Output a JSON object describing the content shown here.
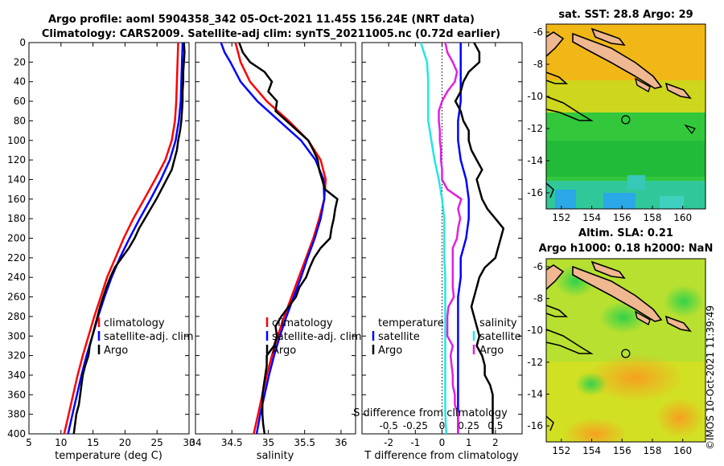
{
  "titles": {
    "line1": "Argo profile: aoml 5904358_342 05-Oct-2021 11.45S 156.24E (NRT data)",
    "line2": "Climatology: CARS2009. Satellite-adj clim: synTS_20211005.nc (0.72d earlier)",
    "sst": "sat. SST: 28.8 Argo: 29",
    "sla1": "Altim. SLA: 0.21",
    "sla2": "Argo h1000: 0.18 h2000: NaN"
  },
  "stamp": "©IMOS 10-Oct-2021 11:39:49",
  "colors": {
    "climatology": "#ff0000",
    "satellite": "#0000ff",
    "argo": "#000000",
    "t_diff": "#22e6e6",
    "s_diff": "#e020e0"
  },
  "chart_data": [
    {
      "type": "line",
      "name": "temperature",
      "xlabel": "temperature (deg C)",
      "ylabel": "",
      "xlim": [
        5,
        30
      ],
      "ylim": [
        400,
        0
      ],
      "xticks": [
        "5",
        "10",
        "15",
        "20",
        "25",
        "30"
      ],
      "yticks": [
        "0",
        "20",
        "40",
        "60",
        "80",
        "100",
        "120",
        "140",
        "160",
        "180",
        "200",
        "220",
        "240",
        "260",
        "280",
        "300",
        "320",
        "340",
        "360",
        "380",
        "400"
      ],
      "legend": [
        "climatology",
        "satellite-adj. clim",
        "Argo"
      ],
      "series": [
        {
          "name": "climatology",
          "depth": [
            0,
            20,
            40,
            60,
            80,
            100,
            120,
            140,
            160,
            180,
            200,
            220,
            240,
            260,
            280,
            300,
            320,
            340,
            360,
            380,
            400
          ],
          "values": [
            28.3,
            28.2,
            28.1,
            28.0,
            27.8,
            27.3,
            26.3,
            24.7,
            23.0,
            21.3,
            19.8,
            18.5,
            17.2,
            16.2,
            15.2,
            14.3,
            13.4,
            12.6,
            11.9,
            11.2,
            10.5
          ]
        },
        {
          "name": "satellite-adj. clim",
          "depth": [
            0,
            20,
            40,
            60,
            80,
            100,
            120,
            140,
            160,
            180,
            200,
            220,
            240,
            260,
            280,
            300,
            320,
            340,
            360,
            380,
            400
          ],
          "values": [
            29.0,
            28.9,
            28.8,
            28.7,
            28.4,
            27.9,
            27.0,
            25.6,
            24.0,
            22.3,
            20.7,
            19.2,
            17.9,
            16.8,
            15.8,
            14.9,
            14.0,
            13.2,
            12.5,
            11.8,
            11.1
          ]
        },
        {
          "name": "Argo",
          "depth": [
            0,
            10,
            20,
            30,
            40,
            50,
            60,
            70,
            80,
            90,
            100,
            110,
            120,
            130,
            140,
            150,
            160,
            170,
            180,
            190,
            200,
            210,
            220,
            230,
            240,
            250,
            260,
            270,
            280,
            290,
            300,
            310,
            320,
            330,
            340,
            350,
            360,
            370,
            380,
            390,
            400
          ],
          "values": [
            29.2,
            29.3,
            29.2,
            29.1,
            29.1,
            29.0,
            29.0,
            28.9,
            28.8,
            28.6,
            28.3,
            28.1,
            27.7,
            27.3,
            26.5,
            25.7,
            24.9,
            24.0,
            23.1,
            22.2,
            21.5,
            20.6,
            19.5,
            18.4,
            17.7,
            17.1,
            16.6,
            16.1,
            15.7,
            15.3,
            14.9,
            14.5,
            14.3,
            13.8,
            13.4,
            13.2,
            13.0,
            12.8,
            12.4,
            12.2,
            12.0
          ]
        }
      ]
    },
    {
      "type": "line",
      "name": "salinity",
      "xlabel": "salinity",
      "xlim": [
        34,
        36.2
      ],
      "ylim": [
        400,
        0
      ],
      "xticks": [
        "34",
        "34.5",
        "35",
        "35.5",
        "36"
      ],
      "legend": [
        "climatology",
        "satellite-adj. clim",
        "Argo"
      ],
      "series": [
        {
          "name": "climatology",
          "depth": [
            0,
            20,
            40,
            60,
            80,
            100,
            120,
            140,
            160,
            180,
            200,
            220,
            240,
            260,
            280,
            300,
            320,
            340,
            360,
            380,
            400
          ],
          "values": [
            34.55,
            34.62,
            34.75,
            34.98,
            35.28,
            35.55,
            35.72,
            35.79,
            35.77,
            35.7,
            35.62,
            35.52,
            35.42,
            35.32,
            35.22,
            35.13,
            35.05,
            34.98,
            34.92,
            34.86,
            34.8
          ]
        },
        {
          "name": "satellite-adj. clim",
          "depth": [
            0,
            10,
            20,
            40,
            60,
            80,
            100,
            120,
            140,
            160,
            180,
            200,
            220,
            240,
            260,
            280,
            300,
            320,
            340,
            360,
            380,
            400
          ],
          "values": [
            34.35,
            34.4,
            34.48,
            34.62,
            34.85,
            35.15,
            35.45,
            35.65,
            35.76,
            35.77,
            35.72,
            35.64,
            35.54,
            35.45,
            35.35,
            35.25,
            35.16,
            35.08,
            35.01,
            34.95,
            34.89,
            34.84
          ]
        },
        {
          "name": "Argo",
          "depth": [
            0,
            10,
            20,
            30,
            40,
            50,
            60,
            70,
            80,
            90,
            100,
            110,
            120,
            130,
            140,
            150,
            160,
            170,
            180,
            190,
            200,
            210,
            220,
            230,
            240,
            250,
            260,
            270,
            280,
            290,
            300,
            310,
            320,
            330,
            340,
            350,
            360,
            370,
            380,
            390,
            400
          ],
          "values": [
            34.6,
            34.65,
            34.75,
            34.95,
            35.05,
            35.0,
            35.12,
            35.1,
            35.25,
            35.4,
            35.55,
            35.62,
            35.68,
            35.7,
            35.74,
            35.78,
            35.95,
            35.92,
            35.9,
            35.87,
            35.85,
            35.72,
            35.63,
            35.57,
            35.52,
            35.43,
            35.38,
            35.28,
            35.18,
            35.1,
            35.12,
            35.08,
            34.98,
            34.98,
            34.96,
            34.94,
            34.92,
            34.92,
            34.92,
            34.93,
            34.95
          ]
        }
      ]
    },
    {
      "type": "line",
      "name": "differences",
      "xlabel": "T difference from climatology",
      "x2label": "S difference from climatology",
      "xlim": [
        -3,
        3
      ],
      "x2lim": [
        -0.75,
        0.75
      ],
      "ylim": [
        400,
        0
      ],
      "xticks": [
        "-2",
        "-1",
        "0",
        "1",
        "2"
      ],
      "x2ticks": [
        "-0.5",
        "-0.25",
        "0",
        "0.25",
        "0.5"
      ],
      "legend_temperature": [
        "temperature",
        "satellite",
        "Argo"
      ],
      "legend_salinity": [
        "salinity",
        "satellite",
        "Argo"
      ],
      "series": [
        {
          "name": "temperature satellite",
          "depth": [
            0,
            20,
            40,
            60,
            80,
            100,
            120,
            140,
            160,
            180,
            200,
            220,
            240,
            260,
            280,
            300,
            320,
            340,
            360,
            380,
            400
          ],
          "values": [
            0.7,
            0.7,
            0.7,
            0.7,
            0.6,
            0.6,
            0.7,
            0.9,
            1.0,
            1.0,
            0.9,
            0.7,
            0.7,
            0.6,
            0.6,
            0.6,
            0.6,
            0.6,
            0.6,
            0.6,
            0.6
          ]
        },
        {
          "name": "temperature Argo",
          "depth": [
            0,
            10,
            20,
            30,
            40,
            50,
            60,
            70,
            80,
            90,
            100,
            110,
            120,
            130,
            140,
            150,
            160,
            170,
            180,
            190,
            200,
            210,
            220,
            230,
            240,
            250,
            260,
            270,
            280,
            290,
            300,
            310,
            320,
            330,
            340,
            350,
            360,
            370,
            380,
            390,
            400
          ],
          "values": [
            1.2,
            1.4,
            1.4,
            1.0,
            0.8,
            0.7,
            0.5,
            0.7,
            0.8,
            1.0,
            1.0,
            1.1,
            1.3,
            1.5,
            1.3,
            1.4,
            1.5,
            1.7,
            2.0,
            2.3,
            2.2,
            2.1,
            2.0,
            1.6,
            1.4,
            1.3,
            1.2,
            1.1,
            1.2,
            1.3,
            1.4,
            1.3,
            1.5,
            1.6,
            1.6,
            1.8,
            1.9,
            1.9,
            1.9,
            1.9,
            1.9
          ]
        },
        {
          "name": "salinity satellite",
          "depth": [
            0,
            20,
            40,
            60,
            80,
            100,
            120,
            140,
            160,
            180,
            200,
            220,
            240,
            260,
            280,
            300,
            320,
            340,
            360,
            380,
            400
          ],
          "values": [
            -0.2,
            -0.14,
            -0.13,
            -0.13,
            -0.13,
            -0.1,
            -0.07,
            -0.03,
            0.0,
            0.02,
            0.02,
            0.02,
            0.03,
            0.03,
            0.03,
            0.03,
            0.03,
            0.03,
            0.03,
            0.03,
            0.04
          ]
        },
        {
          "name": "salinity Argo",
          "depth": [
            0,
            10,
            20,
            30,
            40,
            50,
            60,
            70,
            80,
            90,
            100,
            110,
            120,
            130,
            140,
            150,
            160,
            170,
            180,
            190,
            200,
            210,
            220,
            230,
            240,
            250,
            260,
            270,
            280,
            290,
            300,
            310,
            320,
            330,
            340,
            350,
            360,
            370,
            380,
            390,
            400
          ],
          "values": [
            0.03,
            0.05,
            0.1,
            0.14,
            0.12,
            0.05,
            0.0,
            -0.03,
            -0.03,
            -0.02,
            -0.02,
            -0.01,
            -0.01,
            0.0,
            0.0,
            0.05,
            0.18,
            0.15,
            0.17,
            0.15,
            0.14,
            0.1,
            0.1,
            0.1,
            0.1,
            0.1,
            0.11,
            0.06,
            0.05,
            0.05,
            0.05,
            0.1,
            0.08,
            0.09,
            0.1,
            0.1,
            0.12,
            0.12,
            0.15,
            0.15,
            0.15
          ]
        }
      ]
    },
    {
      "type": "heatmap",
      "name": "sst_map",
      "title": "sat. SST: 28.8 Argo: 29",
      "xlim": [
        151,
        161.5
      ],
      "ylim": [
        -17,
        -5.5
      ],
      "xticks": [
        "152",
        "154",
        "156",
        "158",
        "160"
      ],
      "yticks": [
        "-6",
        "-8",
        "-10",
        "-12",
        "-14",
        "-16"
      ],
      "marker": {
        "lon": 156.24,
        "lat": -11.45
      }
    },
    {
      "type": "heatmap",
      "name": "sla_map",
      "title": "Altim. SLA: 0.21",
      "xlim": [
        151,
        161.5
      ],
      "ylim": [
        -17,
        -5.5
      ],
      "xticks": [
        "152",
        "154",
        "156",
        "158",
        "160"
      ],
      "yticks": [
        "-6",
        "-8",
        "-10",
        "-12",
        "-14",
        "-16"
      ],
      "marker": {
        "lon": 156.24,
        "lat": -11.45
      }
    }
  ]
}
